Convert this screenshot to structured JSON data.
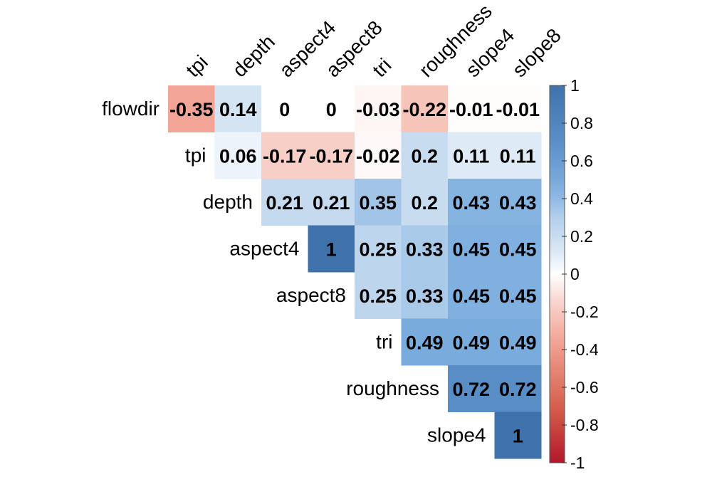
{
  "chart_data": {
    "type": "heatmap",
    "layout": "upper-triangle",
    "rows": [
      "flowdir",
      "tpi",
      "depth",
      "aspect4",
      "aspect8",
      "tri",
      "roughness",
      "slope4"
    ],
    "cols": [
      "tpi",
      "depth",
      "aspect4",
      "aspect8",
      "tri",
      "roughness",
      "slope4",
      "slope8"
    ],
    "cells": [
      {
        "row": 0,
        "col": 0,
        "value": -0.35
      },
      {
        "row": 0,
        "col": 1,
        "value": 0.14
      },
      {
        "row": 0,
        "col": 2,
        "value": 0
      },
      {
        "row": 0,
        "col": 3,
        "value": 0
      },
      {
        "row": 0,
        "col": 4,
        "value": -0.03
      },
      {
        "row": 0,
        "col": 5,
        "value": -0.22
      },
      {
        "row": 0,
        "col": 6,
        "value": -0.01
      },
      {
        "row": 0,
        "col": 7,
        "value": -0.01
      },
      {
        "row": 1,
        "col": 1,
        "value": 0.06
      },
      {
        "row": 1,
        "col": 2,
        "value": -0.17
      },
      {
        "row": 1,
        "col": 3,
        "value": -0.17
      },
      {
        "row": 1,
        "col": 4,
        "value": -0.02
      },
      {
        "row": 1,
        "col": 5,
        "value": 0.2
      },
      {
        "row": 1,
        "col": 6,
        "value": 0.11
      },
      {
        "row": 1,
        "col": 7,
        "value": 0.11
      },
      {
        "row": 2,
        "col": 2,
        "value": 0.21
      },
      {
        "row": 2,
        "col": 3,
        "value": 0.21
      },
      {
        "row": 2,
        "col": 4,
        "value": 0.35
      },
      {
        "row": 2,
        "col": 5,
        "value": 0.2
      },
      {
        "row": 2,
        "col": 6,
        "value": 0.43
      },
      {
        "row": 2,
        "col": 7,
        "value": 0.43
      },
      {
        "row": 3,
        "col": 3,
        "value": 1
      },
      {
        "row": 3,
        "col": 4,
        "value": 0.25
      },
      {
        "row": 3,
        "col": 5,
        "value": 0.33
      },
      {
        "row": 3,
        "col": 6,
        "value": 0.45
      },
      {
        "row": 3,
        "col": 7,
        "value": 0.45
      },
      {
        "row": 4,
        "col": 4,
        "value": 0.25
      },
      {
        "row": 4,
        "col": 5,
        "value": 0.33
      },
      {
        "row": 4,
        "col": 6,
        "value": 0.45
      },
      {
        "row": 4,
        "col": 7,
        "value": 0.45
      },
      {
        "row": 5,
        "col": 5,
        "value": 0.49
      },
      {
        "row": 5,
        "col": 6,
        "value": 0.49
      },
      {
        "row": 5,
        "col": 7,
        "value": 0.49
      },
      {
        "row": 6,
        "col": 6,
        "value": 0.72
      },
      {
        "row": 6,
        "col": 7,
        "value": 0.72
      },
      {
        "row": 7,
        "col": 7,
        "value": 1
      }
    ],
    "colorbar": {
      "range": [
        -1,
        1
      ],
      "ticks": [
        1,
        0.8,
        0.6,
        0.4,
        0.2,
        0,
        -0.2,
        -0.4,
        -0.6,
        -0.8,
        -1
      ],
      "tick_labels": [
        "1",
        "0.8",
        "0.6",
        "0.4",
        "0.2",
        "0",
        "-0.2",
        "-0.4",
        "-0.6",
        "-0.8",
        "-1"
      ],
      "colors": {
        "negative": "#b2182b",
        "mid": "#ffffff",
        "positive": "#2166ac"
      }
    },
    "legend": "right",
    "grid": false
  }
}
